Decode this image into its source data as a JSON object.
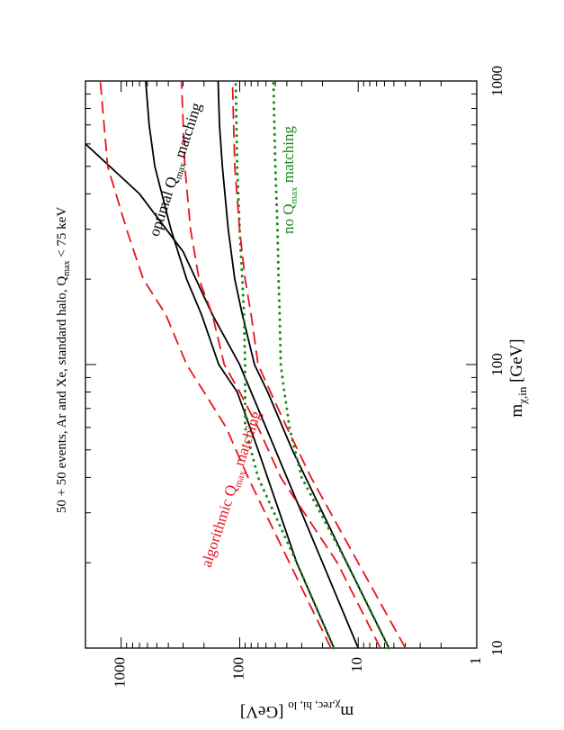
{
  "chart_data": {
    "type": "line",
    "title": "50 + 50 events, Ar and Xe, standard halo, Q",
    "title_sub": "max",
    "title_end": " < 75 keV",
    "xlabel": "m",
    "xlabel_sub": "χ,in",
    "xlabel_unit": " [GeV]",
    "ylabel": "m",
    "ylabel_sub": "χ,rec, hi, lo",
    "ylabel_unit": " [GeV]",
    "xscale": "log",
    "yscale": "log",
    "xlim": [
      10,
      1000
    ],
    "ylim": [
      1,
      2000
    ],
    "orientation": "rotated 90° counter-clockwise",
    "x_ticks": [
      {
        "value": 10,
        "label": "10"
      },
      {
        "value": 100,
        "label": "100"
      },
      {
        "value": 1000,
        "label": "1000"
      }
    ],
    "y_ticks": [
      {
        "value": 1,
        "label": "1"
      },
      {
        "value": 10,
        "label": "10"
      },
      {
        "value": 100,
        "label": "100"
      },
      {
        "value": 1000,
        "label": "1000"
      }
    ],
    "annotations": [
      {
        "text": "optimal Q",
        "sub": "max",
        "rest": "  matching",
        "color": "#000000"
      },
      {
        "text": "no Q",
        "sub": "max",
        "rest": " matching",
        "color": "#1a8a1a"
      },
      {
        "text": "algorithmic Q",
        "sub": "max",
        "rest": " matching",
        "color": "#e8141e"
      }
    ],
    "series": [
      {
        "group": "reconstructed",
        "style": "solid",
        "color": "#000000",
        "x": [
          10,
          20,
          40,
          60,
          100,
          150,
          250,
          400,
          600
        ],
        "y": [
          10,
          20,
          40,
          60,
          100,
          170,
          300,
          700,
          2000
        ]
      },
      {
        "group": "optimal-hi",
        "style": "solid",
        "color": "#000000",
        "x": [
          10,
          20,
          50,
          80,
          100,
          150,
          200,
          300,
          500,
          700,
          1000
        ],
        "y": [
          16,
          33,
          70,
          105,
          150,
          210,
          280,
          380,
          520,
          580,
          620
        ]
      },
      {
        "group": "optimal-lo",
        "style": "solid",
        "color": "#000000",
        "x": [
          10,
          20,
          50,
          80,
          100,
          150,
          200,
          300,
          500,
          700,
          1000
        ],
        "y": [
          5.5,
          12.5,
          36,
          58,
          75,
          95,
          110,
          125,
          140,
          148,
          152
        ]
      },
      {
        "group": "no-qmax-hi",
        "style": "dotted",
        "color": "#1a8a1a",
        "x": [
          10,
          20,
          40,
          60,
          70,
          80,
          100,
          150,
          200,
          300,
          500,
          1000
        ],
        "y": [
          16,
          33,
          70,
          90,
          90,
          90,
          90,
          92,
          95,
          100,
          105,
          108
        ]
      },
      {
        "group": "no-qmax-lo",
        "style": "dotted",
        "color": "#1a8a1a",
        "x": [
          10,
          20,
          40,
          60,
          70,
          80,
          100,
          150,
          200,
          300,
          500,
          1000
        ],
        "y": [
          5.5,
          12.5,
          30,
          38,
          40,
          42,
          45,
          46,
          47,
          48,
          50,
          52
        ]
      },
      {
        "group": "algorithmic-hi",
        "style": "dashed",
        "color": "#e8141e",
        "x": [
          10,
          20,
          40,
          60,
          80,
          100,
          150,
          200,
          300,
          500,
          1000
        ],
        "y": [
          17,
          38,
          85,
          130,
          200,
          280,
          420,
          650,
          900,
          1300,
          1500
        ]
      },
      {
        "group": "algorithmic-mid",
        "style": "dashed",
        "color": "#e8141e",
        "x": [
          10,
          20,
          40,
          60,
          80,
          100,
          150,
          200,
          300,
          500,
          1000
        ],
        "y": [
          6.5,
          15,
          45,
          70,
          100,
          135,
          170,
          220,
          260,
          290,
          310
        ]
      },
      {
        "group": "algorithmic-lo",
        "style": "dashed",
        "color": "#e8141e",
        "x": [
          10,
          20,
          40,
          60,
          80,
          100,
          150,
          200,
          300,
          500,
          1000
        ],
        "y": [
          4,
          10,
          25,
          40,
          55,
          70,
          80,
          90,
          100,
          110,
          115
        ]
      }
    ]
  }
}
